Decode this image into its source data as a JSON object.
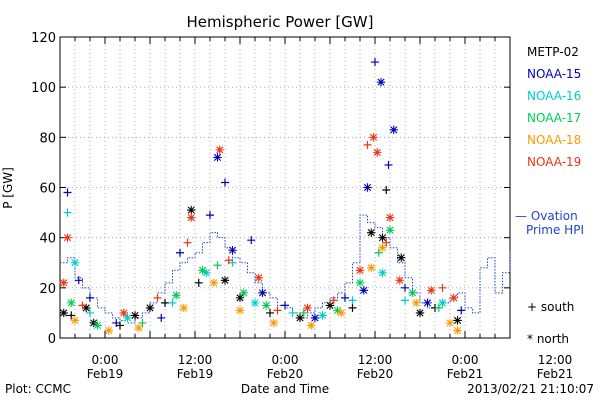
{
  "chart_data": {
    "type": "scatter",
    "title": "Hemispheric Power [GW]",
    "xlabel": "Date and Time",
    "ylabel": "P [GW]",
    "ylim": [
      0,
      120
    ],
    "xlim_hours": [
      -6,
      54
    ],
    "yticks": [
      0,
      20,
      40,
      60,
      80,
      100,
      120
    ],
    "xticks": [
      {
        "h": 0,
        "time": "0:00",
        "date": "Feb19"
      },
      {
        "h": 12,
        "time": "12:00",
        "date": "Feb19"
      },
      {
        "h": 24,
        "time": "0:00",
        "date": "Feb20"
      },
      {
        "h": 36,
        "time": "12:00",
        "date": "Feb20"
      },
      {
        "h": 48,
        "time": "0:00",
        "date": "Feb21"
      },
      {
        "h": 60,
        "time": "12:00",
        "date": "Feb21"
      }
    ],
    "legend": {
      "placement": "right",
      "series_names": [
        "METP-02",
        "NOAA-15",
        "NOAA-16",
        "NOAA-17",
        "NOAA-18",
        "NOAA-19"
      ],
      "ovation_label_line1": "— Ovation",
      "ovation_label_line2": "Prime HPI",
      "south_label": "+ south",
      "north_label": "* north"
    },
    "series": [
      {
        "name": "METP-02",
        "color": "#000000",
        "points": [
          {
            "x": -5.5,
            "y": 10,
            "m": "*"
          },
          {
            "x": -4.5,
            "y": 9,
            "m": "+"
          },
          {
            "x": -2.5,
            "y": 12,
            "m": "*"
          },
          {
            "x": -1.5,
            "y": 6,
            "m": "*"
          },
          {
            "x": 2,
            "y": 5,
            "m": "+"
          },
          {
            "x": 4,
            "y": 9,
            "m": "*"
          },
          {
            "x": 6,
            "y": 12,
            "m": "*"
          },
          {
            "x": 8,
            "y": 14,
            "m": "+"
          },
          {
            "x": 11.5,
            "y": 51,
            "m": "*"
          },
          {
            "x": 12.5,
            "y": 22,
            "m": "+"
          },
          {
            "x": 16,
            "y": 23,
            "m": "*"
          },
          {
            "x": 18,
            "y": 16,
            "m": "*"
          },
          {
            "x": 22,
            "y": 10,
            "m": "+"
          },
          {
            "x": 26,
            "y": 8,
            "m": "*"
          },
          {
            "x": 30,
            "y": 13,
            "m": "*"
          },
          {
            "x": 33,
            "y": 12,
            "m": "+"
          },
          {
            "x": 35.5,
            "y": 42,
            "m": "*"
          },
          {
            "x": 37,
            "y": 40,
            "m": "*"
          },
          {
            "x": 37.5,
            "y": 59,
            "m": "+"
          },
          {
            "x": 39.5,
            "y": 32,
            "m": "*"
          },
          {
            "x": 42,
            "y": 10,
            "m": "*"
          },
          {
            "x": 44,
            "y": 12,
            "m": "+"
          },
          {
            "x": 47,
            "y": 7,
            "m": "*"
          }
        ]
      },
      {
        "name": "NOAA-15",
        "color": "#0000bb",
        "points": [
          {
            "x": -5,
            "y": 58,
            "m": "+"
          },
          {
            "x": -3.5,
            "y": 23,
            "m": "+"
          },
          {
            "x": -2,
            "y": 16,
            "m": "+"
          },
          {
            "x": 1.5,
            "y": 6,
            "m": "+"
          },
          {
            "x": 7.5,
            "y": 8,
            "m": "+"
          },
          {
            "x": 10,
            "y": 34,
            "m": "+"
          },
          {
            "x": 14,
            "y": 49,
            "m": "+"
          },
          {
            "x": 15,
            "y": 72,
            "m": "*"
          },
          {
            "x": 16,
            "y": 62,
            "m": "+"
          },
          {
            "x": 17,
            "y": 35,
            "m": "*"
          },
          {
            "x": 19.5,
            "y": 39,
            "m": "+"
          },
          {
            "x": 21,
            "y": 18,
            "m": "*"
          },
          {
            "x": 24,
            "y": 13,
            "m": "+"
          },
          {
            "x": 28,
            "y": 8,
            "m": "*"
          },
          {
            "x": 32,
            "y": 16,
            "m": "+"
          },
          {
            "x": 34.5,
            "y": 19,
            "m": "*"
          },
          {
            "x": 35,
            "y": 60,
            "m": "*"
          },
          {
            "x": 36,
            "y": 110,
            "m": "+"
          },
          {
            "x": 36.8,
            "y": 102,
            "m": "*"
          },
          {
            "x": 37.8,
            "y": 69,
            "m": "+"
          },
          {
            "x": 38.5,
            "y": 83,
            "m": "*"
          },
          {
            "x": 40,
            "y": 20,
            "m": "+"
          },
          {
            "x": 43,
            "y": 14,
            "m": "*"
          },
          {
            "x": 47.5,
            "y": 11,
            "m": "+"
          }
        ]
      },
      {
        "name": "NOAA-16",
        "color": "#00cccc",
        "points": [
          {
            "x": -5,
            "y": 50,
            "m": "+"
          },
          {
            "x": -4,
            "y": 30,
            "m": "*"
          },
          {
            "x": -2,
            "y": 10,
            "m": "+"
          },
          {
            "x": 3,
            "y": 8,
            "m": "*"
          },
          {
            "x": 9,
            "y": 14,
            "m": "+"
          },
          {
            "x": 13.5,
            "y": 26,
            "m": "*"
          },
          {
            "x": 17,
            "y": 30,
            "m": "+"
          },
          {
            "x": 20,
            "y": 14,
            "m": "*"
          },
          {
            "x": 25,
            "y": 10,
            "m": "+"
          },
          {
            "x": 29,
            "y": 9,
            "m": "*"
          },
          {
            "x": 33,
            "y": 15,
            "m": "+"
          },
          {
            "x": 37,
            "y": 26,
            "m": "*"
          },
          {
            "x": 40,
            "y": 15,
            "m": "+"
          },
          {
            "x": 45,
            "y": 14,
            "m": "*"
          }
        ]
      },
      {
        "name": "NOAA-17",
        "color": "#00cc55",
        "points": [
          {
            "x": -4.5,
            "y": 14,
            "m": "*"
          },
          {
            "x": -1,
            "y": 5,
            "m": "*"
          },
          {
            "x": 5,
            "y": 6,
            "m": "+"
          },
          {
            "x": 9.5,
            "y": 17,
            "m": "*"
          },
          {
            "x": 13,
            "y": 27,
            "m": "*"
          },
          {
            "x": 15,
            "y": 29,
            "m": "+"
          },
          {
            "x": 18.5,
            "y": 18,
            "m": "*"
          },
          {
            "x": 21.5,
            "y": 13,
            "m": "*"
          },
          {
            "x": 26.5,
            "y": 10,
            "m": "+"
          },
          {
            "x": 31,
            "y": 11,
            "m": "*"
          },
          {
            "x": 34,
            "y": 22,
            "m": "*"
          },
          {
            "x": 36.5,
            "y": 34,
            "m": "+"
          },
          {
            "x": 38,
            "y": 43,
            "m": "*"
          },
          {
            "x": 41,
            "y": 18,
            "m": "*"
          },
          {
            "x": 44.5,
            "y": 12,
            "m": "+"
          }
        ]
      },
      {
        "name": "NOAA-18",
        "color": "#ff9900",
        "points": [
          {
            "x": -4,
            "y": 7,
            "m": "*"
          },
          {
            "x": 0.5,
            "y": 3,
            "m": "*"
          },
          {
            "x": 4.5,
            "y": 4,
            "m": "*"
          },
          {
            "x": 10.5,
            "y": 12,
            "m": "*"
          },
          {
            "x": 14.5,
            "y": 22,
            "m": "*"
          },
          {
            "x": 18,
            "y": 11,
            "m": "*"
          },
          {
            "x": 22.5,
            "y": 6,
            "m": "*"
          },
          {
            "x": 27.5,
            "y": 5,
            "m": "*"
          },
          {
            "x": 31.5,
            "y": 10,
            "m": "*"
          },
          {
            "x": 35.5,
            "y": 28,
            "m": "*"
          },
          {
            "x": 37,
            "y": 36,
            "m": "*"
          },
          {
            "x": 41.5,
            "y": 14,
            "m": "*"
          },
          {
            "x": 46,
            "y": 6,
            "m": "*"
          },
          {
            "x": 47,
            "y": 3,
            "m": "*"
          }
        ]
      },
      {
        "name": "NOAA-19",
        "color": "#ee3311",
        "points": [
          {
            "x": -5.5,
            "y": 22,
            "m": "*"
          },
          {
            "x": -5,
            "y": 40,
            "m": "*"
          },
          {
            "x": -3,
            "y": 13,
            "m": "+"
          },
          {
            "x": 2.5,
            "y": 10,
            "m": "*"
          },
          {
            "x": 7,
            "y": 16,
            "m": "+"
          },
          {
            "x": 11,
            "y": 38,
            "m": "+"
          },
          {
            "x": 11.5,
            "y": 48,
            "m": "*"
          },
          {
            "x": 15.3,
            "y": 75,
            "m": "*"
          },
          {
            "x": 16.5,
            "y": 31,
            "m": "+"
          },
          {
            "x": 20.5,
            "y": 24,
            "m": "*"
          },
          {
            "x": 23,
            "y": 11,
            "m": "+"
          },
          {
            "x": 27,
            "y": 12,
            "m": "*"
          },
          {
            "x": 30.5,
            "y": 15,
            "m": "+"
          },
          {
            "x": 34,
            "y": 27,
            "m": "*"
          },
          {
            "x": 35,
            "y": 77,
            "m": "+"
          },
          {
            "x": 35.8,
            "y": 80,
            "m": "*"
          },
          {
            "x": 36.3,
            "y": 74,
            "m": "*"
          },
          {
            "x": 37.5,
            "y": 38,
            "m": "+"
          },
          {
            "x": 38,
            "y": 48,
            "m": "*"
          },
          {
            "x": 39.3,
            "y": 23,
            "m": "*"
          },
          {
            "x": 43.5,
            "y": 19,
            "m": "*"
          },
          {
            "x": 45,
            "y": 20,
            "m": "+"
          },
          {
            "x": 46.5,
            "y": 16,
            "m": "*"
          }
        ]
      }
    ],
    "ovation_hpi": {
      "name": "Ovation Prime HPI",
      "color": "#2244cc",
      "points": [
        [
          -6,
          30
        ],
        [
          -5,
          32
        ],
        [
          -4,
          24
        ],
        [
          -3,
          20
        ],
        [
          -2,
          16
        ],
        [
          -1,
          12
        ],
        [
          0,
          10
        ],
        [
          1,
          8
        ],
        [
          2,
          7
        ],
        [
          3,
          6
        ],
        [
          4,
          8
        ],
        [
          5,
          10
        ],
        [
          6,
          14
        ],
        [
          7,
          18
        ],
        [
          8,
          22
        ],
        [
          9,
          27
        ],
        [
          10,
          30
        ],
        [
          11,
          32
        ],
        [
          12,
          34
        ],
        [
          13,
          38
        ],
        [
          14,
          42
        ],
        [
          15,
          40
        ],
        [
          16,
          36
        ],
        [
          17,
          32
        ],
        [
          18,
          30
        ],
        [
          19,
          26
        ],
        [
          20,
          22
        ],
        [
          21,
          18
        ],
        [
          22,
          16
        ],
        [
          23,
          13
        ],
        [
          24,
          12
        ],
        [
          25,
          10
        ],
        [
          26,
          8
        ],
        [
          27,
          10
        ],
        [
          28,
          12
        ],
        [
          29,
          14
        ],
        [
          30,
          16
        ],
        [
          31,
          18
        ],
        [
          32,
          22
        ],
        [
          33,
          30
        ],
        [
          34,
          49
        ],
        [
          35,
          46
        ],
        [
          36,
          44
        ],
        [
          37,
          40
        ],
        [
          38,
          36
        ],
        [
          39,
          30
        ],
        [
          40,
          24
        ],
        [
          41,
          18
        ],
        [
          42,
          14
        ],
        [
          43,
          12
        ],
        [
          44,
          12
        ],
        [
          45,
          14
        ],
        [
          46,
          16
        ],
        [
          47,
          18
        ],
        [
          48,
          12
        ],
        [
          49,
          10
        ],
        [
          50,
          28
        ],
        [
          51,
          32
        ],
        [
          52,
          18
        ],
        [
          53,
          26
        ],
        [
          54,
          35
        ]
      ]
    }
  },
  "footer": {
    "plot_credit": "Plot: CCMC",
    "timestamp": "2013/02/21 21:10:07"
  }
}
